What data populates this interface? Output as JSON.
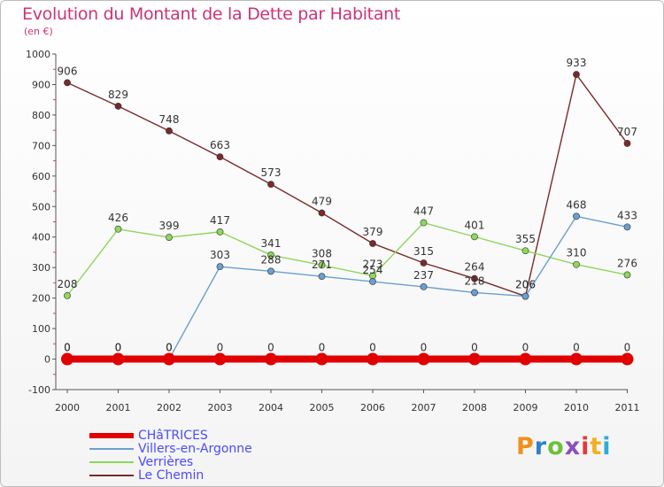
{
  "page": {
    "title": "Evolution du Montant de la Dette par Habitant",
    "subtitle": "(en €)",
    "brand": {
      "text": "Proxiti",
      "colors": [
        "#f0901a",
        "#2e7fce",
        "#6ebf3a",
        "#8a4fbf",
        "#e23a3a",
        "#f0b020",
        "#2eaad8"
      ]
    }
  },
  "chart_data": {
    "type": "line",
    "title": "Evolution du Montant de la Dette par Habitant",
    "subtitle": "(en €)",
    "xlabel": "",
    "ylabel": "",
    "x": [
      "2000",
      "2001",
      "2002",
      "2003",
      "2004",
      "2005",
      "2006",
      "2007",
      "2008",
      "2009",
      "2010",
      "2011"
    ],
    "ylim": [
      -100,
      1000
    ],
    "yticks": [
      -100,
      0,
      100,
      200,
      300,
      400,
      500,
      600,
      700,
      800,
      900,
      1000
    ],
    "grid": false,
    "legend_position": "bottom-left",
    "series": [
      {
        "name": "CHâTRICES",
        "color": "#e00000",
        "values": [
          0,
          0,
          0,
          0,
          0,
          0,
          0,
          0,
          0,
          0,
          0,
          0
        ],
        "labels": [
          "0",
          "0",
          "0",
          "0",
          "0",
          "0",
          "0",
          "0",
          "0",
          "0",
          "0",
          "0"
        ]
      },
      {
        "name": "Villers-en-Argonne",
        "color": "#6a9fd0",
        "values": [
          0,
          0,
          0,
          303,
          288,
          271,
          254,
          237,
          218,
          206,
          468,
          433
        ],
        "labels": [
          "0",
          "0",
          "0",
          "303",
          "288",
          "271",
          "254",
          "237",
          "218",
          "206",
          "468",
          "433"
        ]
      },
      {
        "name": "Verrières",
        "color": "#8ed65c",
        "values": [
          208,
          426,
          399,
          417,
          341,
          308,
          273,
          447,
          401,
          355,
          310,
          276
        ],
        "labels": [
          "208",
          "426",
          "399",
          "417",
          "341",
          "308",
          "273",
          "447",
          "401",
          "355",
          "310",
          "276"
        ]
      },
      {
        "name": "Le Chemin",
        "color": "#7a2a2a",
        "values": [
          906,
          829,
          748,
          663,
          573,
          479,
          379,
          315,
          264,
          206,
          933,
          707
        ],
        "labels": [
          "906",
          "829",
          "748",
          "663",
          "573",
          "479",
          "379",
          "315",
          "264",
          "206",
          "933",
          "707"
        ]
      }
    ]
  }
}
